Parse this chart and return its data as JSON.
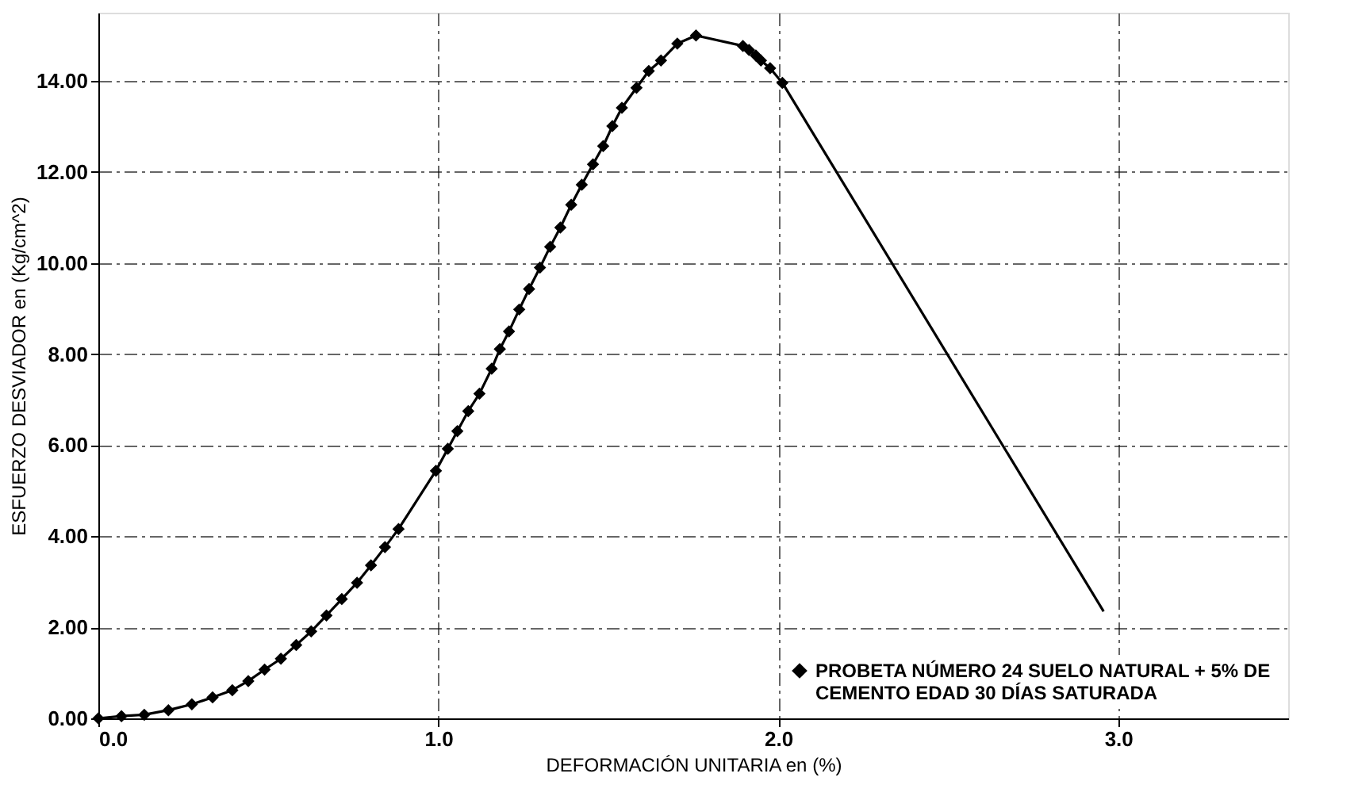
{
  "chart_data": {
    "type": "line",
    "xlabel": "DEFORMACIÓN UNITARIA en (%)",
    "ylabel": "ESFUERZO DESVIADOR en (Kg/cm^2)",
    "xlim": [
      0,
      3.5
    ],
    "ylim": [
      0,
      15.5
    ],
    "xticks": [
      {
        "value": 0,
        "label": "0.0"
      },
      {
        "value": 1,
        "label": "1.0"
      },
      {
        "value": 2,
        "label": "2.0"
      },
      {
        "value": 3,
        "label": "3.0"
      }
    ],
    "yticks": [
      {
        "value": 0,
        "label": "0.00"
      },
      {
        "value": 2,
        "label": "2.00"
      },
      {
        "value": 4,
        "label": "4.00"
      },
      {
        "value": 6,
        "label": "6.00"
      },
      {
        "value": 8,
        "label": "8.00"
      },
      {
        "value": 10,
        "label": "10.00"
      },
      {
        "value": 12,
        "label": "12.00"
      },
      {
        "value": 14,
        "label": "14.00"
      }
    ],
    "grid": true,
    "legend": "bottom right",
    "line_style": "solid",
    "series": [
      {
        "name": "PROBETA NÚMERO 24 SUELO NATURAL + 5% DE CEMENTO EDAD 30 DÍAS  SATURADA",
        "color": "#000000",
        "marker": "diamond",
        "x": [
          0,
          0.068,
          0.135,
          0.206,
          0.275,
          0.336,
          0.394,
          0.441,
          0.489,
          0.537,
          0.582,
          0.626,
          0.671,
          0.716,
          0.761,
          0.802,
          0.843,
          0.883,
          0.993,
          1.028,
          1.056,
          1.088,
          1.121,
          1.157,
          1.181,
          1.208,
          1.238,
          1.267,
          1.299,
          1.329,
          1.359,
          1.391,
          1.422,
          1.455,
          1.485,
          1.512,
          1.54,
          1.583,
          1.619,
          1.655,
          1.703,
          1.758,
          1.896,
          1.914,
          1.934,
          1.949,
          1.976,
          2.012
        ],
        "values": [
          0,
          0.05,
          0.08,
          0.18,
          0.31,
          0.46,
          0.62,
          0.82,
          1.07,
          1.31,
          1.61,
          1.91,
          2.26,
          2.62,
          2.98,
          3.36,
          3.76,
          4.16,
          5.44,
          5.92,
          6.31,
          6.75,
          7.13,
          7.68,
          8.11,
          8.5,
          8.98,
          9.43,
          9.9,
          10.36,
          10.78,
          11.28,
          11.72,
          12.17,
          12.57,
          13.01,
          13.41,
          13.85,
          14.22,
          14.45,
          14.82,
          15.0,
          14.77,
          14.68,
          14.56,
          14.45,
          14.28,
          13.96
        ]
      },
      {
        "color": "#000000",
        "marker": "none",
        "x": [
          2.012,
          2.957
        ],
        "values": [
          13.96,
          2.35
        ]
      }
    ]
  }
}
